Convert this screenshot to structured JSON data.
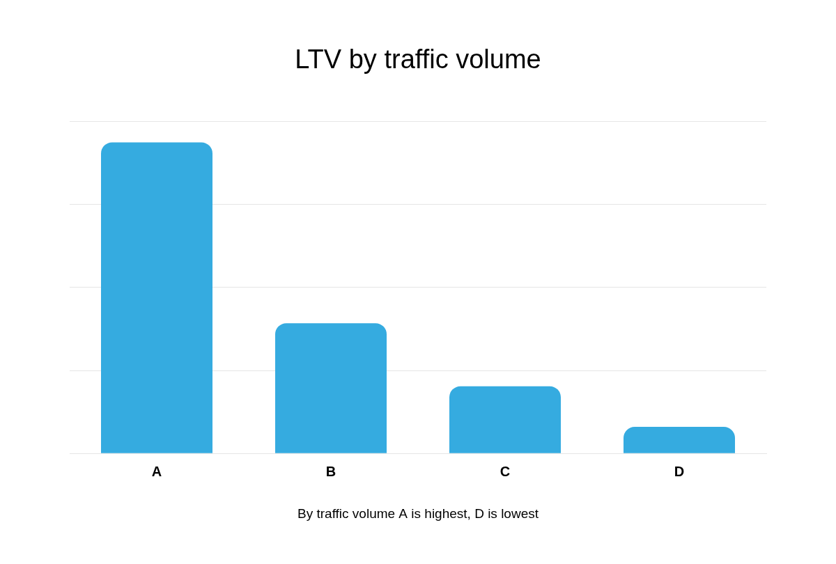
{
  "chart_data": {
    "type": "bar",
    "title": "LTV by traffic volume",
    "xlabel": "By traffic volume A is highest, D is lowest",
    "categories": [
      "A",
      "B",
      "C",
      "D"
    ],
    "values": [
      3.75,
      1.57,
      0.81,
      0.32
    ],
    "color": "#35abe0",
    "ylim": [
      0,
      4
    ],
    "yticks": [
      0,
      1,
      2,
      3,
      4
    ],
    "grid": true,
    "tick_labels": "x"
  }
}
